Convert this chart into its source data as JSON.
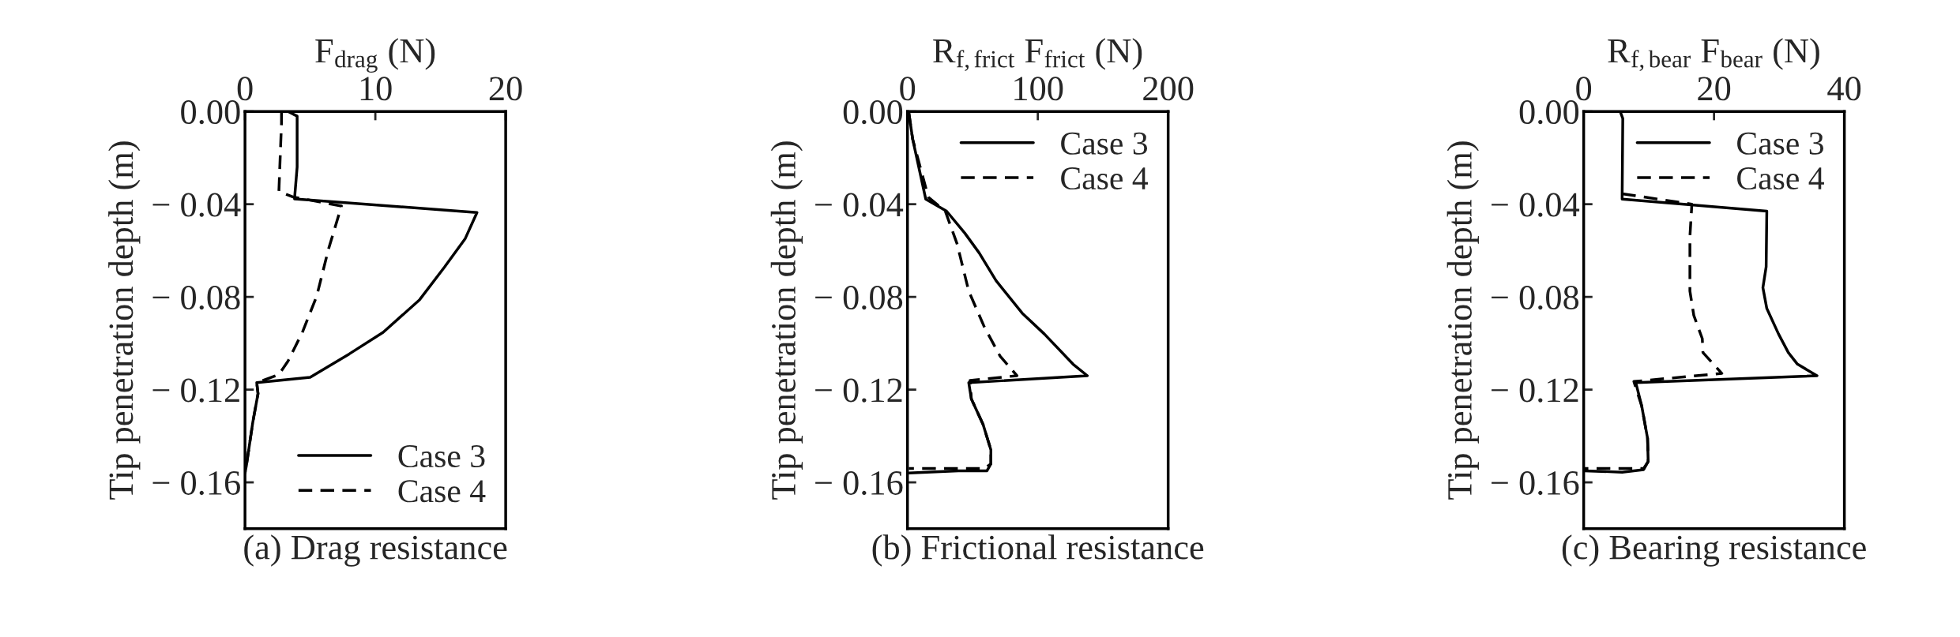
{
  "chart_data": [
    {
      "type": "line",
      "title": "(a) Drag resistance",
      "xlabel": "F$_{drag}$ (N)",
      "ylabel": "Tip penetration depth (m)",
      "xlim": [
        0,
        20
      ],
      "xticks": [
        0,
        10,
        20
      ],
      "ylim": [
        -0.18,
        0
      ],
      "yticks": [
        {
          "value": 0,
          "label": "0.00"
        },
        {
          "value": -0.04,
          "label": "− 0.04"
        },
        {
          "value": -0.08,
          "label": "− 0.08"
        },
        {
          "value": -0.12,
          "label": "− 0.12"
        },
        {
          "value": -0.16,
          "label": "− 0.16"
        }
      ],
      "legend": "bottom right",
      "grid": false,
      "series": [
        {
          "name": "Case 3",
          "color": "#000000",
          "line_style": "solid",
          "x": [
            3.3,
            4.0,
            4.0,
            3.8,
            17.8,
            16.9,
            15.3,
            13.4,
            10.6,
            8.0,
            5.0,
            0.9,
            1.0,
            0.6,
            0.1,
            0
          ],
          "values": [
            0,
            -0.002,
            -0.024,
            -0.0377,
            -0.0436,
            -0.0548,
            -0.0672,
            -0.0812,
            -0.0953,
            -0.1046,
            -0.1147,
            -0.117,
            -0.1217,
            -0.134,
            -0.153,
            -0.156
          ]
        },
        {
          "name": "Case 4",
          "color": "#000000",
          "line_style": "dashed",
          "x": [
            2.8,
            2.8,
            2.6,
            3.7,
            7.4,
            6.4,
            5.5,
            4.4,
            3.3,
            2.6,
            0.9,
            1.0,
            0.6,
            0.1,
            0
          ],
          "values": [
            0,
            -0.005,
            -0.0345,
            -0.0369,
            -0.0408,
            -0.0595,
            -0.0797,
            -0.0953,
            -0.1077,
            -0.1135,
            -0.117,
            -0.1217,
            -0.134,
            -0.153,
            -0.156
          ]
        }
      ]
    },
    {
      "type": "line",
      "title": "(b) Frictional resistance",
      "xlabel": "R$_{f,frict}$ F$_{frict}$ (N)",
      "ylabel": "Tip penetration depth (m)",
      "xlim": [
        0,
        200
      ],
      "xticks": [
        0,
        100,
        200
      ],
      "ylim": [
        -0.18,
        0
      ],
      "yticks": [
        {
          "value": 0,
          "label": "0.00"
        },
        {
          "value": -0.04,
          "label": "− 0.04"
        },
        {
          "value": -0.08,
          "label": "− 0.08"
        },
        {
          "value": -0.12,
          "label": "− 0.12"
        },
        {
          "value": -0.16,
          "label": "− 0.16"
        }
      ],
      "legend": "top right",
      "grid": false,
      "series": [
        {
          "name": "Case 3",
          "color": "#000000",
          "line_style": "solid",
          "x": [
            0.9,
            4,
            14,
            30,
            44,
            55,
            68,
            88,
            105,
            127,
            138,
            47,
            49,
            58,
            64,
            64,
            61,
            39,
            1
          ],
          "values": [
            0,
            -0.012,
            -0.0378,
            -0.043,
            -0.0525,
            -0.061,
            -0.073,
            -0.087,
            -0.096,
            -0.109,
            -0.114,
            -0.117,
            -0.124,
            -0.135,
            -0.146,
            -0.152,
            -0.155,
            -0.155,
            -0.156
          ]
        },
        {
          "name": "Case 4",
          "color": "#000000",
          "line_style": "dashed",
          "x": [
            0.9,
            4,
            16,
            29,
            38,
            47,
            59,
            71,
            84,
            48,
            49,
            58,
            64,
            64,
            59,
            1
          ],
          "values": [
            0,
            -0.012,
            -0.037,
            -0.043,
            -0.057,
            -0.0775,
            -0.093,
            -0.1055,
            -0.114,
            -0.116,
            -0.124,
            -0.135,
            -0.146,
            -0.152,
            -0.154,
            -0.154
          ]
        }
      ]
    },
    {
      "type": "line",
      "title": "(c) Bearing resistance",
      "xlabel": "R$_{f,bear}$ F$_{bear}$ (N)",
      "ylabel": "Tip penetration depth (m)",
      "xlim": [
        0,
        40
      ],
      "xticks": [
        0,
        20,
        40
      ],
      "ylim": [
        -0.18,
        0
      ],
      "yticks": [
        {
          "value": 0,
          "label": "0.00"
        },
        {
          "value": -0.04,
          "label": "− 0.04"
        },
        {
          "value": -0.08,
          "label": "− 0.08"
        },
        {
          "value": -0.12,
          "label": "− 0.12"
        },
        {
          "value": -0.16,
          "label": "− 0.16"
        }
      ],
      "legend": "top right",
      "grid": false,
      "series": [
        {
          "name": "Case 3",
          "color": "#000000",
          "line_style": "solid",
          "x": [
            5.6,
            6.0,
            5.9,
            28.1,
            28.0,
            27.5,
            28.1,
            29.9,
            31.4,
            32.8,
            35.8,
            8.0,
            8.9,
            9.8,
            9.9,
            9.2,
            5.9,
            0.1
          ],
          "values": [
            0,
            -0.003,
            -0.0378,
            -0.043,
            -0.067,
            -0.076,
            -0.085,
            -0.096,
            -0.104,
            -0.109,
            -0.114,
            -0.117,
            -0.127,
            -0.141,
            -0.151,
            -0.1545,
            -0.1556,
            -0.155
          ]
        },
        {
          "name": "Case 4",
          "color": "#000000",
          "line_style": "dashed",
          "x": [
            5.9,
            16.6,
            16.3,
            16.3,
            16.9,
            18.2,
            18.3,
            21.2,
            7.7,
            8.9,
            9.8,
            9.9,
            9.2,
            0.1
          ],
          "values": [
            -0.0355,
            -0.04,
            -0.054,
            -0.0775,
            -0.088,
            -0.098,
            -0.104,
            -0.113,
            -0.1165,
            -0.127,
            -0.141,
            -0.151,
            -0.154,
            -0.154
          ]
        }
      ]
    }
  ]
}
